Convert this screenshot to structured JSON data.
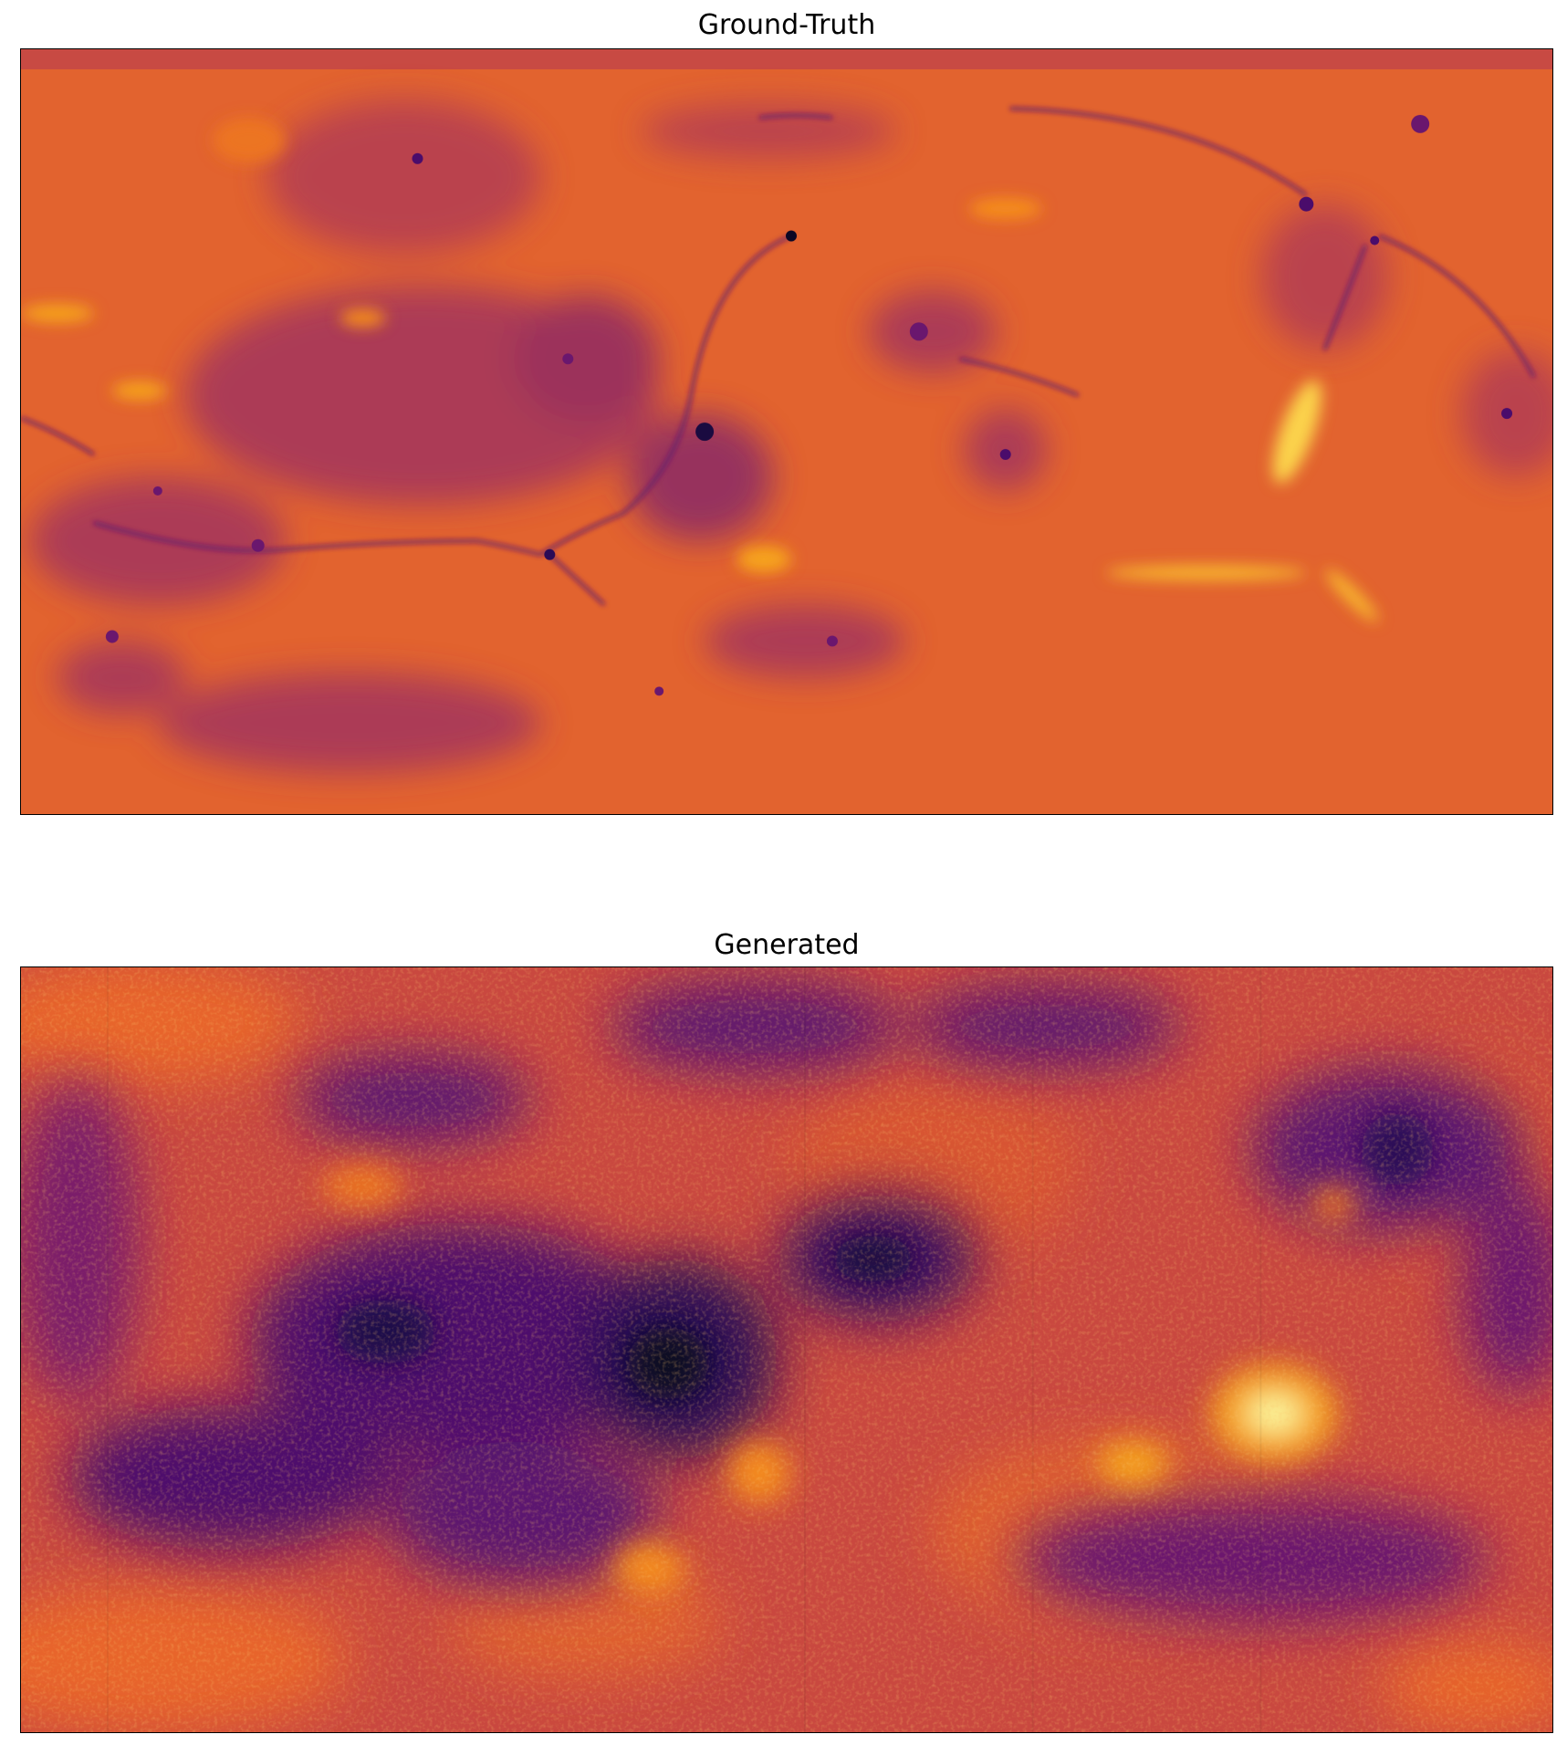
{
  "panels": [
    {
      "title": "Ground-Truth",
      "colormap": "inferno",
      "base_color": "#e2632f",
      "top_band_color": "#c84a43"
    },
    {
      "title": "Generated",
      "colormap": "inferno",
      "base_color": "#c9483f"
    }
  ],
  "colors": {
    "inferno_dark": "#0b0724",
    "inferno_purple": "#4a0c6b",
    "inferno_magenta": "#9d2f5b",
    "inferno_red": "#d34b3f",
    "inferno_orange": "#f1711f",
    "inferno_yellow": "#fbd34b",
    "inferno_light": "#fcffa4"
  }
}
